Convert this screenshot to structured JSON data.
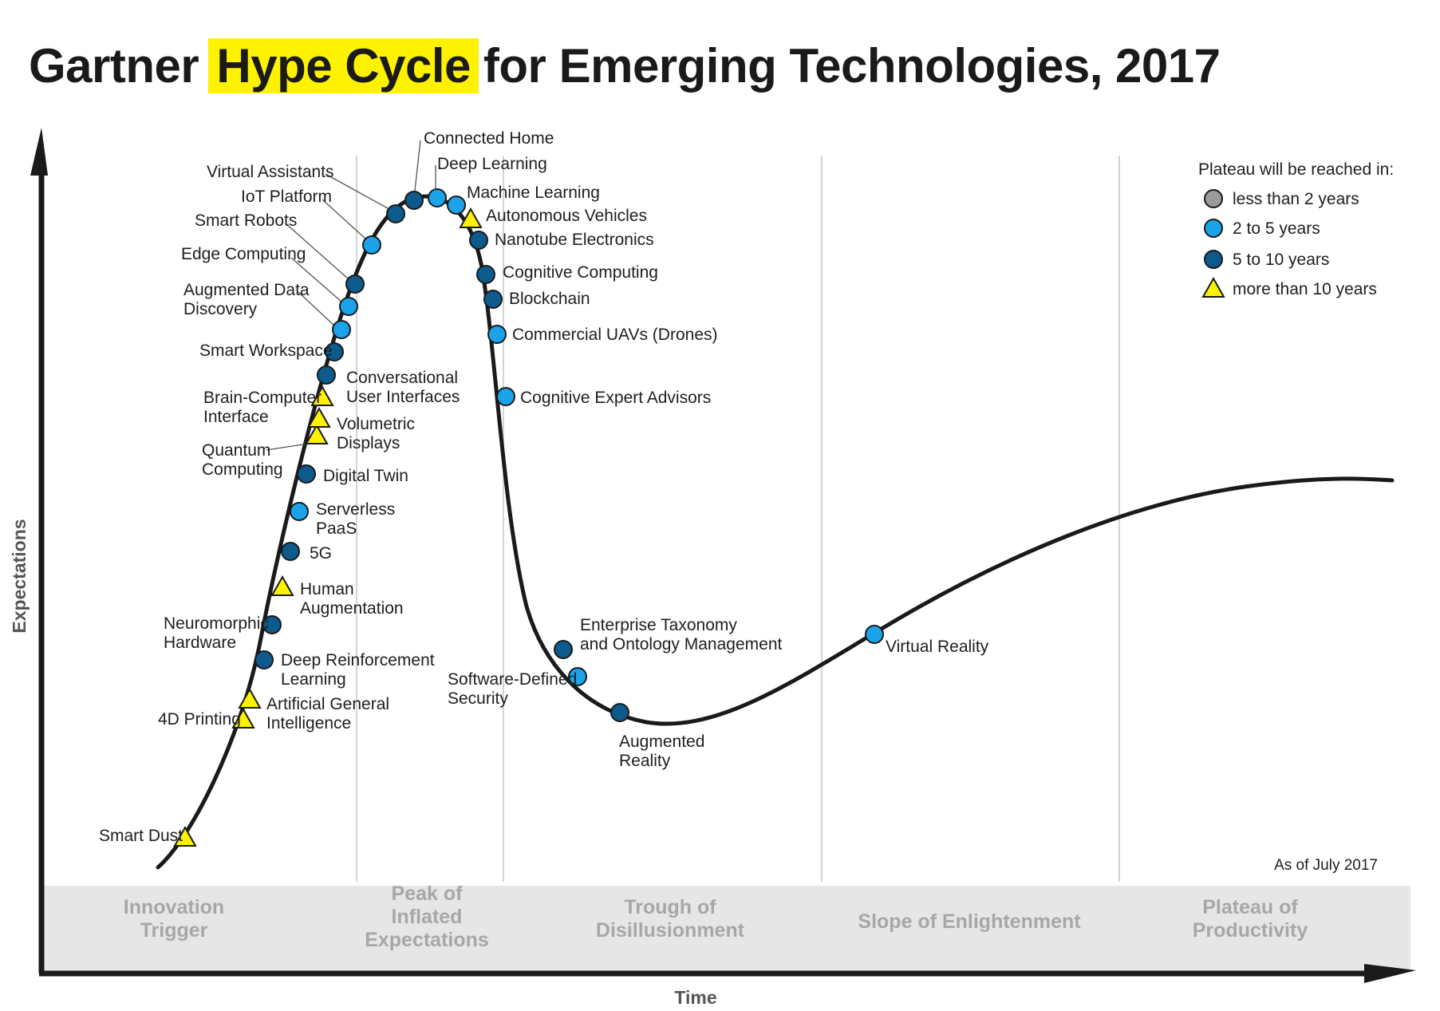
{
  "title": {
    "before": "Gartner",
    "highlight": "Hype Cycle",
    "after": "for Emerging Technologies, 2017"
  },
  "axes": {
    "y_label": "Expectations",
    "x_label": "Time"
  },
  "as_of": "As of July 2017",
  "phases": [
    {
      "label_lines": [
        "Innovation",
        "Trigger"
      ]
    },
    {
      "label_lines": [
        "Peak of",
        "Inflated",
        "Expectations"
      ]
    },
    {
      "label_lines": [
        "Trough of",
        "Disillusionment"
      ]
    },
    {
      "label_lines": [
        "Slope of Enlightenment"
      ]
    },
    {
      "label_lines": [
        "Plateau of",
        "Productivity"
      ]
    }
  ],
  "legend": {
    "title": "Plateau will be reached in:",
    "items": [
      {
        "key": "lt2",
        "label": "less than 2 years",
        "shape": "circle",
        "color": "#9b9b9b"
      },
      {
        "key": "2to5",
        "label": "2 to 5 years",
        "shape": "circle",
        "color": "#1aa3e8"
      },
      {
        "key": "5to10",
        "label": "5 to 10 years",
        "shape": "circle",
        "color": "#0d5a8c"
      },
      {
        "key": "gt10",
        "label": "more than 10 years",
        "shape": "triangle",
        "color": "#fff200"
      }
    ]
  },
  "technologies": [
    {
      "name": "Smart Dust",
      "plateau": "gt10"
    },
    {
      "name": "4D Printing",
      "plateau": "gt10"
    },
    {
      "name": "Artificial General Intelligence",
      "plateau": "gt10"
    },
    {
      "name": "Deep Reinforcement Learning",
      "plateau": "5to10"
    },
    {
      "name": "Neuromorphic Hardware",
      "plateau": "5to10"
    },
    {
      "name": "Human Augmentation",
      "plateau": "gt10"
    },
    {
      "name": "5G",
      "plateau": "5to10"
    },
    {
      "name": "Serverless PaaS",
      "plateau": "2to5"
    },
    {
      "name": "Digital Twin",
      "plateau": "5to10"
    },
    {
      "name": "Quantum Computing",
      "plateau": "gt10"
    },
    {
      "name": "Volumetric Displays",
      "plateau": "gt10"
    },
    {
      "name": "Brain-Computer Interface",
      "plateau": "gt10"
    },
    {
      "name": "Conversational User Interfaces",
      "plateau": "5to10"
    },
    {
      "name": "Smart Workspace",
      "plateau": "5to10"
    },
    {
      "name": "Augmented Data Discovery",
      "plateau": "2to5"
    },
    {
      "name": "Edge Computing",
      "plateau": "2to5"
    },
    {
      "name": "Smart Robots",
      "plateau": "5to10"
    },
    {
      "name": "IoT Platform",
      "plateau": "2to5"
    },
    {
      "name": "Virtual Assistants",
      "plateau": "5to10"
    },
    {
      "name": "Connected Home",
      "plateau": "5to10"
    },
    {
      "name": "Deep Learning",
      "plateau": "2to5"
    },
    {
      "name": "Machine Learning",
      "plateau": "2to5"
    },
    {
      "name": "Autonomous Vehicles",
      "plateau": "gt10"
    },
    {
      "name": "Nanotube Electronics",
      "plateau": "5to10"
    },
    {
      "name": "Cognitive Computing",
      "plateau": "5to10"
    },
    {
      "name": "Blockchain",
      "plateau": "5to10"
    },
    {
      "name": "Commercial UAVs (Drones)",
      "plateau": "2to5"
    },
    {
      "name": "Cognitive Expert Advisors",
      "plateau": "2to5"
    },
    {
      "name": "Enterprise Taxonomy and Ontology Management",
      "plateau": "5to10"
    },
    {
      "name": "Software-Defined Security",
      "plateau": "2to5"
    },
    {
      "name": "Augmented Reality",
      "plateau": "5to10"
    },
    {
      "name": "Virtual Reality",
      "plateau": "2to5"
    }
  ]
}
